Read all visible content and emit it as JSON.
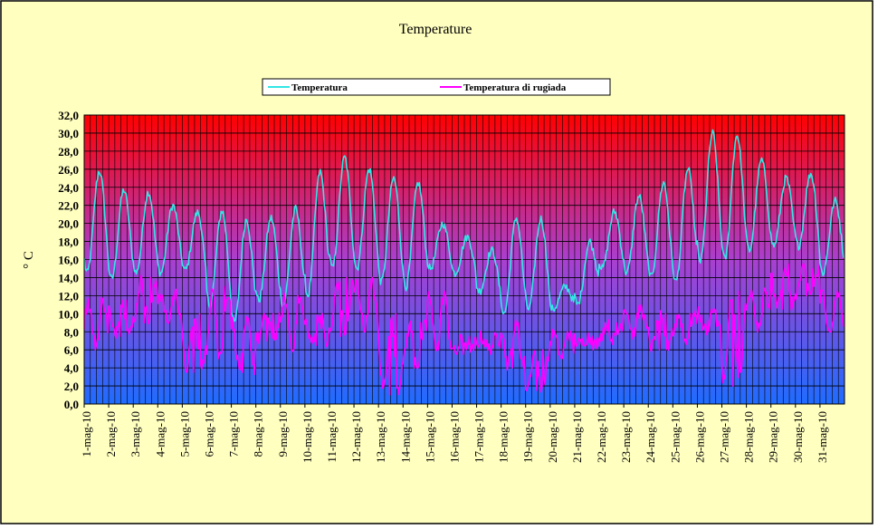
{
  "chart_data": {
    "type": "line",
    "title": "Temperature",
    "ylabel": "° C",
    "xlabel": "",
    "ylim": [
      0,
      32
    ],
    "y_step": 2,
    "y_ticks": [
      "0,0",
      "2,0",
      "4,0",
      "6,0",
      "8,0",
      "10,0",
      "12,0",
      "14,0",
      "16,0",
      "18,0",
      "20,0",
      "22,0",
      "24,0",
      "26,0",
      "28,0",
      "30,0",
      "32,0"
    ],
    "grid": true,
    "legend_position": "top",
    "categories": [
      "1-mag-10",
      "2-mag-10",
      "3-mag-10",
      "4-mag-10",
      "5-mag-10",
      "6-mag-10",
      "7-mag-10",
      "8-mag-10",
      "9-mag-10",
      "10-mag-10",
      "11-mag-10",
      "12-mag-10",
      "13-mag-10",
      "14-mag-10",
      "15-mag-10",
      "16-mag-10",
      "17-mag-10",
      "18-mag-10",
      "19-mag-10",
      "20-mag-10",
      "21-mag-10",
      "22-mag-10",
      "23-mag-10",
      "24-mag-10",
      "25-mag-10",
      "26-mag-10",
      "27-mag-10",
      "28-mag-10",
      "29-mag-10",
      "30-mag-10",
      "31-mag-10"
    ],
    "series": [
      {
        "name": "Temperatura",
        "color": "#33e6e6",
        "daily_min": [
          14.5,
          13.8,
          14.5,
          14.5,
          14.8,
          11.0,
          9.0,
          11.5,
          11.0,
          12.0,
          15.0,
          15.0,
          13.5,
          13.0,
          15.0,
          14.5,
          12.5,
          10.0,
          10.5,
          10.5,
          11.0,
          15.0,
          14.5,
          14.0,
          13.5,
          15.8,
          16.0,
          17.0,
          17.5,
          17.5,
          14.5
        ],
        "daily_max": [
          25.8,
          23.7,
          23.5,
          22.0,
          21.2,
          21.4,
          20.5,
          20.6,
          21.6,
          25.7,
          27.3,
          26.0,
          25.0,
          24.5,
          20.0,
          18.5,
          17.0,
          20.6,
          20.5,
          13.0,
          18.0,
          21.3,
          23.0,
          24.5,
          26.0,
          30.0,
          29.8,
          27.0,
          25.0,
          25.5,
          22.5
        ]
      },
      {
        "name": "Temperatura di rugiada",
        "color": "#ff00ff",
        "daily_min": [
          6.0,
          7.5,
          9.0,
          9.0,
          3.5,
          5.0,
          3.5,
          7.0,
          6.0,
          6.5,
          7.5,
          8.0,
          1.0,
          4.0,
          6.0,
          5.5,
          6.0,
          4.0,
          1.5,
          5.0,
          6.5,
          7.0,
          7.5,
          6.0,
          7.0,
          8.0,
          2.0,
          8.0,
          10.5,
          12.0,
          8.0
        ],
        "daily_max": [
          11.8,
          11.5,
          14.0,
          12.5,
          10.0,
          13.0,
          9.5,
          10.0,
          12.0,
          10.0,
          14.0,
          13.8,
          10.0,
          9.0,
          12.5,
          7.5,
          7.5,
          9.0,
          6.0,
          8.0,
          7.5,
          9.0,
          11.0,
          10.0,
          10.0,
          10.5,
          12.5,
          12.5,
          15.5,
          15.0,
          12.5
        ]
      }
    ]
  }
}
